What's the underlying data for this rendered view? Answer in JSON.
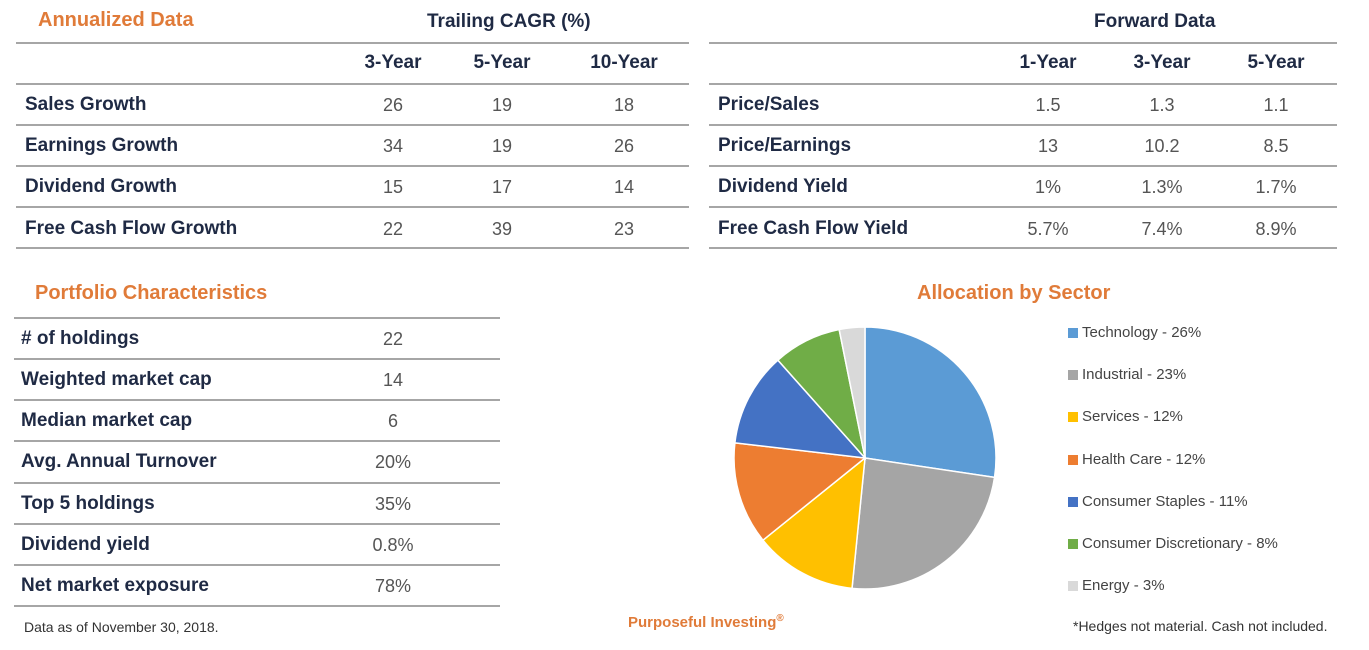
{
  "annualized": {
    "title": "Annualized Data",
    "group_header": "Trailing CAGR (%)",
    "columns": [
      "3-Year",
      "5-Year",
      "10-Year"
    ],
    "rows": [
      {
        "label": "Sales Growth",
        "values": [
          "26",
          "19",
          "18"
        ]
      },
      {
        "label": "Earnings Growth",
        "values": [
          "34",
          "19",
          "26"
        ]
      },
      {
        "label": "Dividend Growth",
        "values": [
          "15",
          "17",
          "14"
        ]
      },
      {
        "label": "Free Cash Flow Growth",
        "values": [
          "22",
          "39",
          "23"
        ]
      }
    ]
  },
  "forward": {
    "title": "Forward Data",
    "columns": [
      "1-Year",
      "3-Year",
      "5-Year"
    ],
    "rows": [
      {
        "label": "Price/Sales",
        "values": [
          "1.5",
          "1.3",
          "1.1"
        ]
      },
      {
        "label": "Price/Earnings",
        "values": [
          "13",
          "10.2",
          "8.5"
        ]
      },
      {
        "label": "Dividend Yield",
        "values": [
          "1%",
          "1.3%",
          "1.7%"
        ]
      },
      {
        "label": "Free Cash Flow Yield",
        "values": [
          "5.7%",
          "7.4%",
          "8.9%"
        ]
      }
    ]
  },
  "portfolio": {
    "title": "Portfolio Characteristics",
    "rows": [
      {
        "label": "# of holdings",
        "value": "22"
      },
      {
        "label": "Weighted market cap",
        "value": "14"
      },
      {
        "label": "Median market cap",
        "value": "6"
      },
      {
        "label": "Avg. Annual Turnover",
        "value": "20%"
      },
      {
        "label": "Top 5 holdings",
        "value": "35%"
      },
      {
        "label": "Dividend yield",
        "value": "0.8%"
      },
      {
        "label": "Net market exposure",
        "value": "78%"
      }
    ]
  },
  "chart_data": {
    "type": "pie",
    "title": "Allocation by Sector",
    "categories": [
      "Technology",
      "Industrial",
      "Services",
      "Health Care",
      "Consumer Staples",
      "Consumer Discretionary",
      "Energy"
    ],
    "values": [
      26,
      23,
      12,
      12,
      11,
      8,
      3
    ],
    "labels": [
      "Technology - 26%",
      "Industrial - 23%",
      "Services - 12%",
      "Health Care - 12%",
      "Consumer Staples - 11%",
      "Consumer Discretionary - 8%",
      "Energy - 3%"
    ],
    "colors": [
      "#5b9bd5",
      "#a5a5a5",
      "#ffc000",
      "#ed7d31",
      "#4472c4",
      "#70ad47",
      "#d9d9d9"
    ],
    "legend": "right"
  },
  "footer": {
    "date_note": "Data as of November 30, 2018.",
    "brand": "Purposeful Investing",
    "brand_mark": "®",
    "disclaimer": "*Hedges not material. Cash not included."
  }
}
